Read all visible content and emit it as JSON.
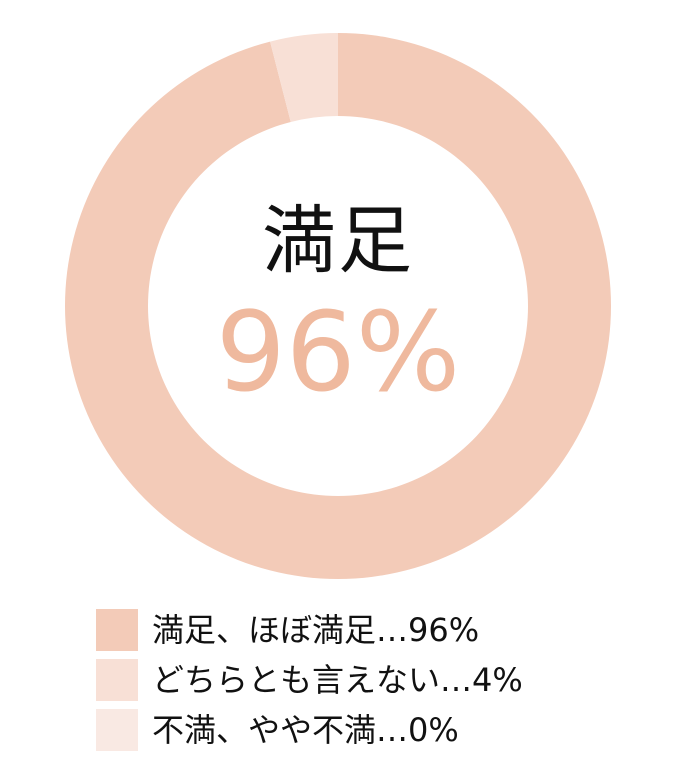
{
  "chart_data": {
    "type": "pie",
    "style": "donut",
    "center_title": "満足",
    "center_value": "96%",
    "slices": [
      {
        "label": "満足、ほぼ満足…96%",
        "value": 96,
        "color": "#f3cbb8"
      },
      {
        "label": "どちらとも言えない…4%",
        "value": 4,
        "color": "#f8e0d6"
      },
      {
        "label": "不満、やや不満…0%",
        "value": 0,
        "color": "#f9e9e3"
      }
    ],
    "legend_position": "bottom"
  }
}
